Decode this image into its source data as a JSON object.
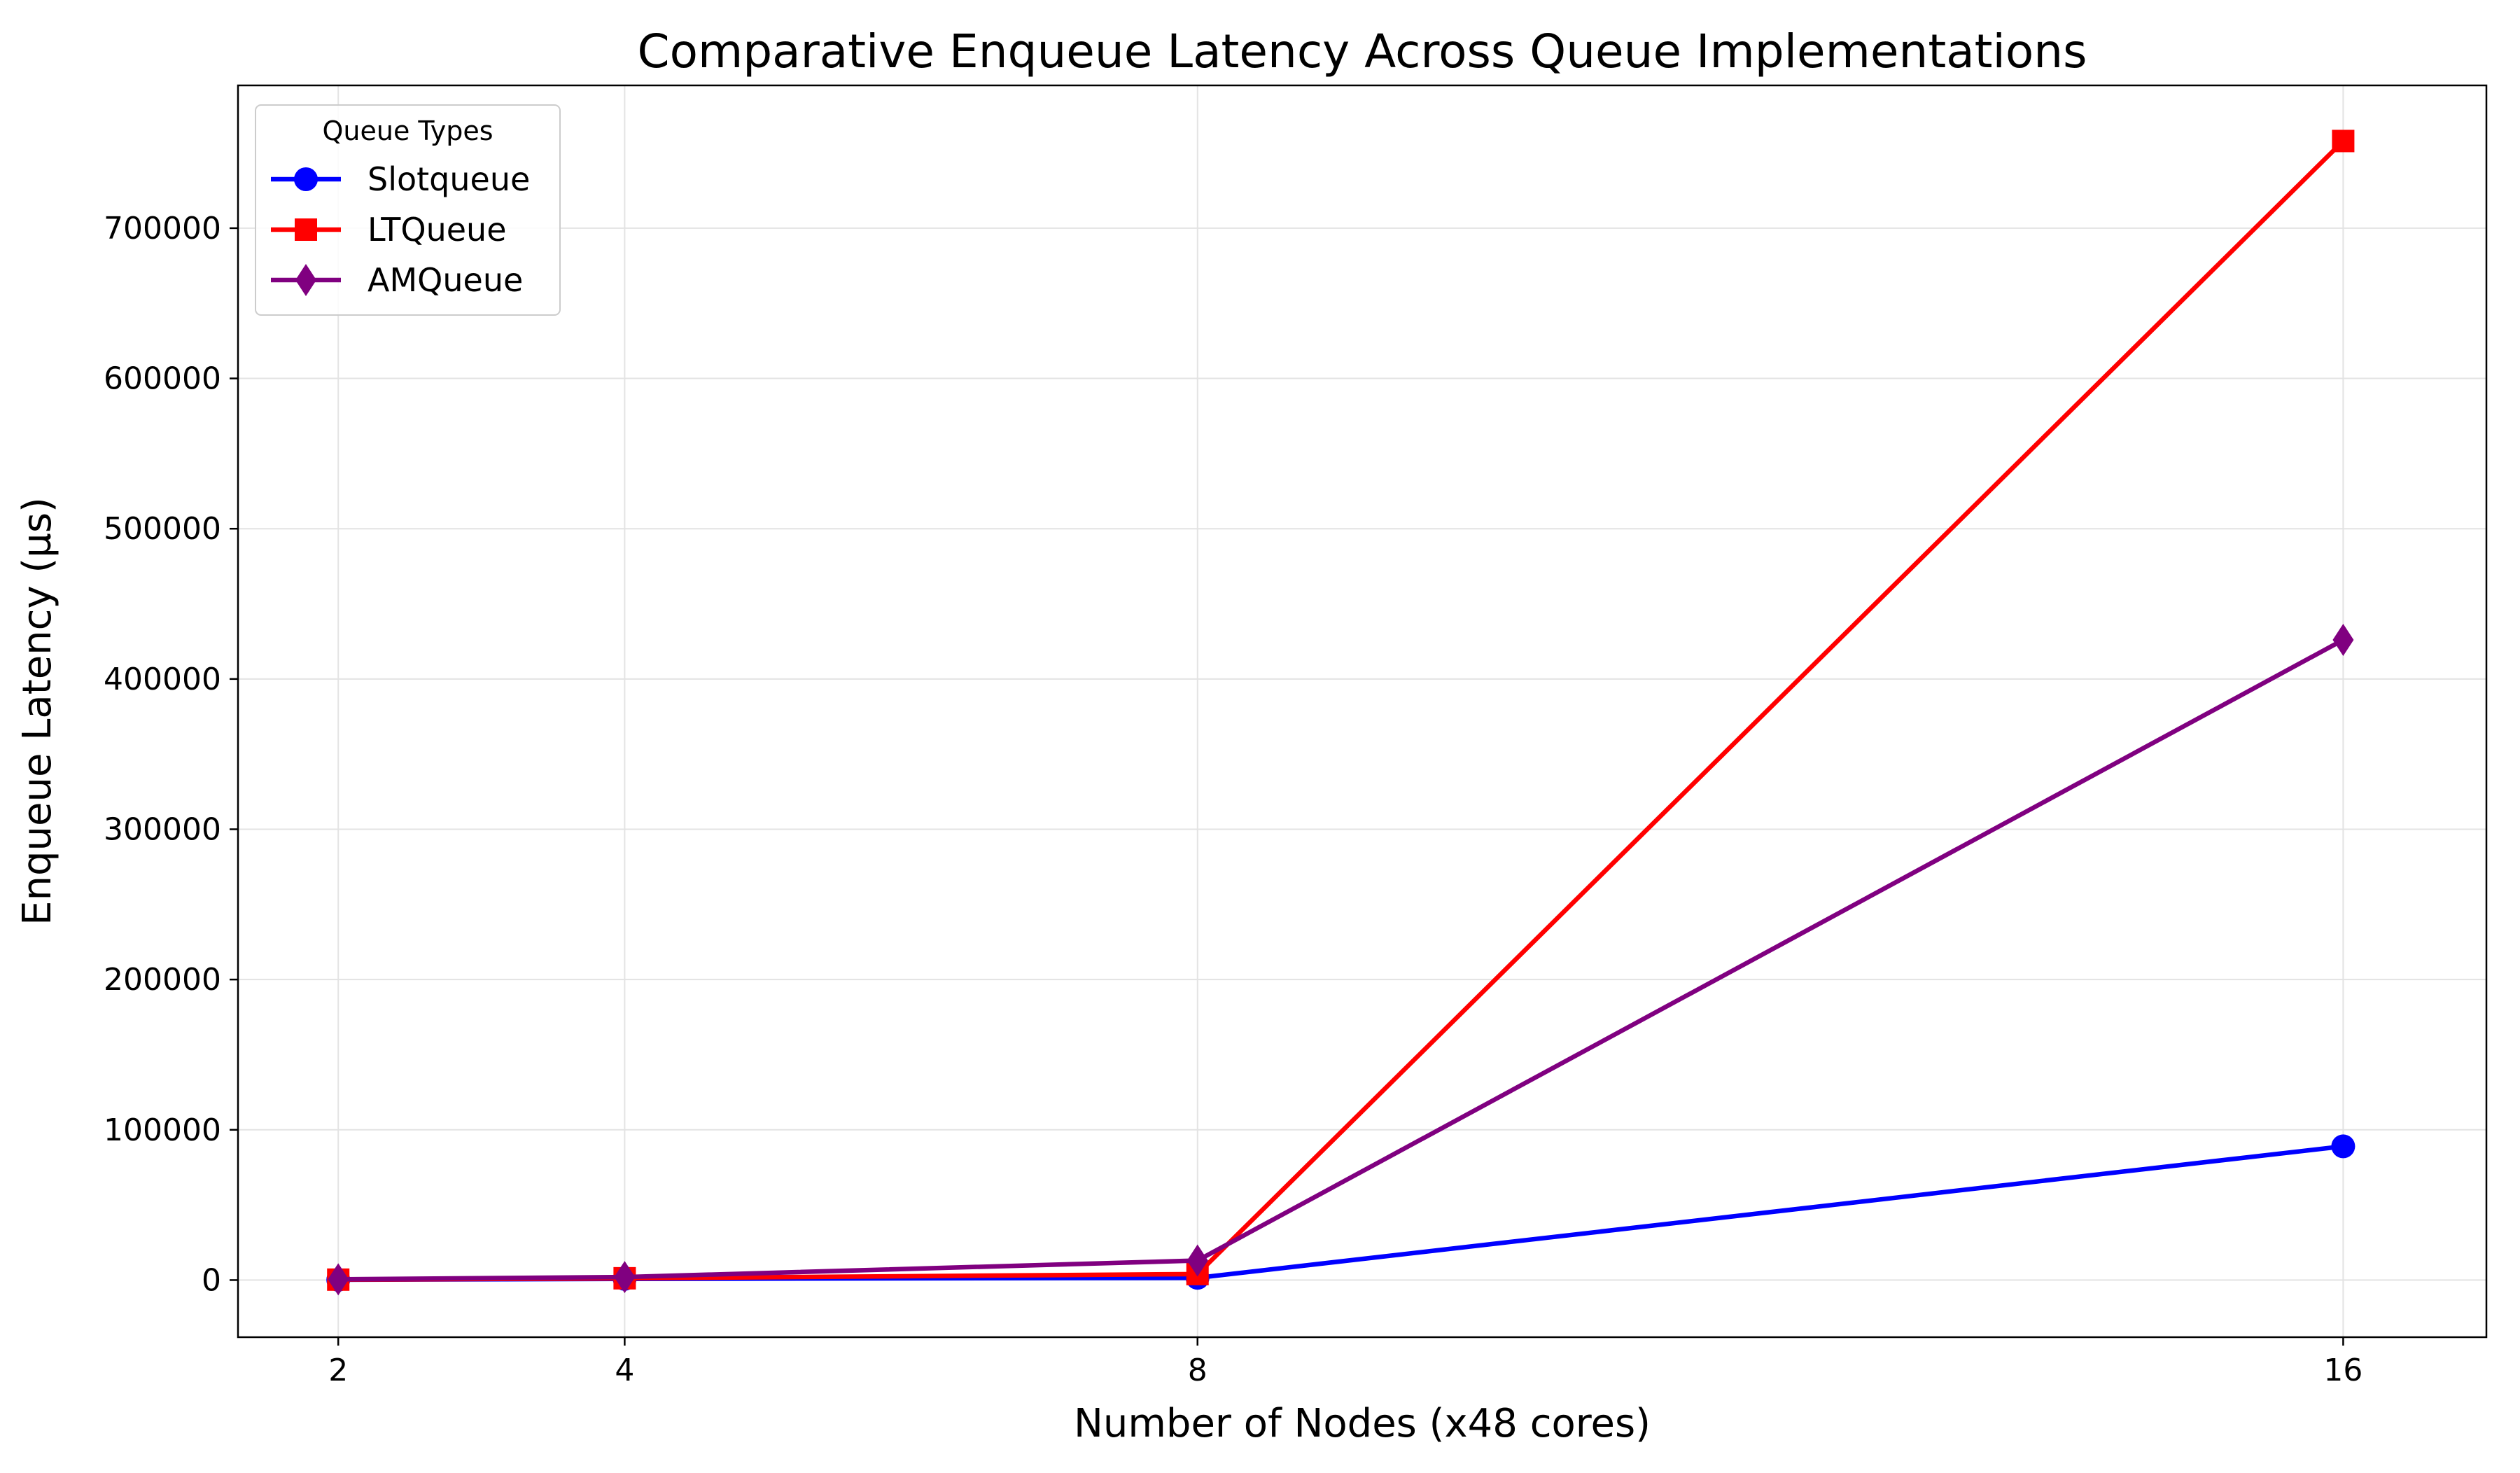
{
  "chart_data": {
    "type": "line",
    "title": "Comparative Enqueue Latency Across Queue Implementations",
    "xlabel": "Number of Nodes (x48 cores)",
    "ylabel": "Enqueue Latency (µs)",
    "x": [
      2,
      4,
      8,
      16
    ],
    "xticks": [
      2,
      4,
      8,
      16
    ],
    "xlim": [
      1.3,
      17.0
    ],
    "yticks": [
      0,
      100000,
      200000,
      300000,
      400000,
      500000,
      600000,
      700000
    ],
    "ylim": [
      -38000,
      795000
    ],
    "grid": true,
    "legend": {
      "title": "Queue Types",
      "placement": "top-left"
    },
    "series": [
      {
        "name": "Slotqueue",
        "values": [
          200,
          800,
          1500,
          89000
        ],
        "color": "#0000ff",
        "marker": "circle"
      },
      {
        "name": "LTQueue",
        "values": [
          300,
          1200,
          4000,
          758000
        ],
        "color": "#ff0000",
        "marker": "square"
      },
      {
        "name": "AMQueue",
        "values": [
          500,
          2000,
          13000,
          426000
        ],
        "color": "#800080",
        "marker": "diamond"
      }
    ]
  }
}
